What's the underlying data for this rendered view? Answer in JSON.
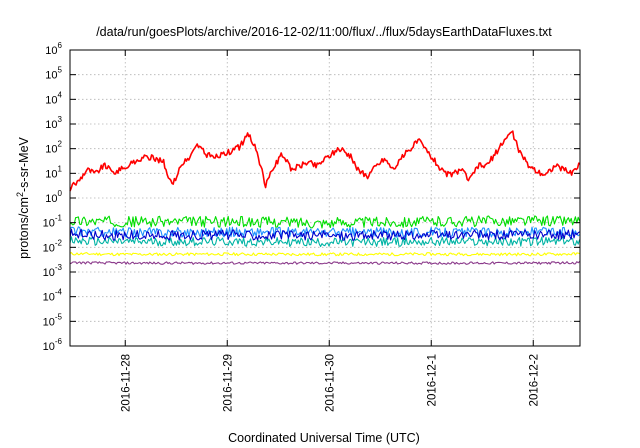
{
  "chart_data": {
    "type": "line",
    "title": "/data/run/goesPlots/archive/2016-12-02/11:00/flux/../flux/5daysEarthDataFluxes.txt",
    "xlabel": "Coordinated Universal Time (UTC)",
    "ylabel": {
      "before": "protons/cm",
      "sup": "2",
      "after": "-s-sr-MeV"
    },
    "y_scale": "log",
    "ylim": [
      1e-06,
      1000000.0
    ],
    "y_ticks": [
      {
        "value": 1e-06,
        "base": "10",
        "exp": "-6"
      },
      {
        "value": 1e-05,
        "base": "10",
        "exp": "-5"
      },
      {
        "value": 0.0001,
        "base": "10",
        "exp": "-4"
      },
      {
        "value": 0.001,
        "base": "10",
        "exp": "-3"
      },
      {
        "value": 0.01,
        "base": "10",
        "exp": "-2"
      },
      {
        "value": 0.1,
        "base": "10",
        "exp": "-1"
      },
      {
        "value": 1,
        "base": "10",
        "exp": "0"
      },
      {
        "value": 10,
        "base": "10",
        "exp": "1"
      },
      {
        "value": 100,
        "base": "10",
        "exp": "2"
      },
      {
        "value": 1000.0,
        "base": "10",
        "exp": "3"
      },
      {
        "value": 10000.0,
        "base": "10",
        "exp": "4"
      },
      {
        "value": 100000.0,
        "base": "10",
        "exp": "5"
      },
      {
        "value": 1000000.0,
        "base": "10",
        "exp": "6"
      }
    ],
    "xlim": [
      "2016-11-27 11:00",
      "2016-12-02 11:00"
    ],
    "x_ticks": [
      {
        "value": "2016-11-28 00:00",
        "label": "2016-11-28"
      },
      {
        "value": "2016-11-29 00:00",
        "label": "2016-11-29"
      },
      {
        "value": "2016-11-30 00:00",
        "label": "2016-11-30"
      },
      {
        "value": "2016-12-01 00:00",
        "label": "2016-12-1"
      },
      {
        "value": "2016-12-02 00:00",
        "label": "2016-12-2"
      }
    ],
    "grid": true,
    "legend": "none",
    "series": [
      {
        "color": "#ff0000",
        "x": [
          "2016-11-27 11:00",
          "2016-11-27 13:00",
          "2016-11-27 15:00",
          "2016-11-27 17:00",
          "2016-11-27 19:00",
          "2016-11-27 21:00",
          "2016-11-27 23:00",
          "2016-11-28 01:00",
          "2016-11-28 03:00",
          "2016-11-28 05:00",
          "2016-11-28 07:00",
          "2016-11-28 09:00",
          "2016-11-28 11:00",
          "2016-11-28 13:00",
          "2016-11-28 15:00",
          "2016-11-28 17:00",
          "2016-11-28 19:00",
          "2016-11-28 21:00",
          "2016-11-28 23:00",
          "2016-11-29 01:00",
          "2016-11-29 03:00",
          "2016-11-29 05:00",
          "2016-11-29 07:00",
          "2016-11-29 09:00",
          "2016-11-29 11:00",
          "2016-11-29 13:00",
          "2016-11-29 15:00",
          "2016-11-29 17:00",
          "2016-11-29 19:00",
          "2016-11-29 21:00",
          "2016-11-29 23:00",
          "2016-11-30 01:00",
          "2016-11-30 03:00",
          "2016-11-30 05:00",
          "2016-11-30 07:00",
          "2016-11-30 09:00",
          "2016-11-30 11:00",
          "2016-11-30 13:00",
          "2016-11-30 15:00",
          "2016-11-30 17:00",
          "2016-11-30 19:00",
          "2016-11-30 21:00",
          "2016-11-30 23:00",
          "2016-12-01 01:00",
          "2016-12-01 03:00",
          "2016-12-01 05:00",
          "2016-12-01 07:00",
          "2016-12-01 09:00",
          "2016-12-01 11:00",
          "2016-12-01 13:00",
          "2016-12-01 15:00",
          "2016-12-01 17:00",
          "2016-12-01 19:00",
          "2016-12-01 21:00",
          "2016-12-01 23:00",
          "2016-12-02 01:00",
          "2016-12-02 03:00",
          "2016-12-02 05:00",
          "2016-12-02 07:00",
          "2016-12-02 09:00",
          "2016-12-02 11:00"
        ],
        "y": [
          2.5,
          5,
          15,
          10,
          22,
          11,
          14,
          22,
          35,
          45,
          40,
          30,
          3,
          20,
          40,
          150,
          60,
          45,
          60,
          80,
          120,
          400,
          80,
          3,
          20,
          60,
          15,
          20,
          30,
          20,
          40,
          70,
          100,
          50,
          12,
          8,
          20,
          40,
          15,
          40,
          100,
          220,
          80,
          30,
          10,
          9,
          15,
          5,
          20,
          20,
          60,
          200,
          500,
          60,
          20,
          12,
          9,
          20,
          15,
          10,
          25
        ]
      },
      {
        "color": "#00dd00",
        "x": [
          "2016-11-27 11:00",
          "2016-11-28 00:00",
          "2016-11-29 00:00",
          "2016-11-30 00:00",
          "2016-12-01 00:00",
          "2016-12-02 00:00",
          "2016-12-02 11:00"
        ],
        "y": [
          0.12,
          0.11,
          0.11,
          0.1,
          0.11,
          0.12,
          0.12
        ]
      },
      {
        "color": "#0000cc",
        "x": [
          "2016-11-27 11:00",
          "2016-11-28 00:00",
          "2016-11-29 00:00",
          "2016-11-30 00:00",
          "2016-12-01 00:00",
          "2016-12-02 00:00",
          "2016-12-02 11:00"
        ],
        "y": [
          0.035,
          0.03,
          0.032,
          0.03,
          0.031,
          0.032,
          0.033
        ]
      },
      {
        "color": "#1e90ff",
        "x": [
          "2016-11-27 11:00",
          "2016-11-28 00:00",
          "2016-11-29 00:00",
          "2016-11-30 00:00",
          "2016-12-01 00:00",
          "2016-12-02 00:00",
          "2016-12-02 11:00"
        ],
        "y": [
          0.045,
          0.04,
          0.042,
          0.04,
          0.041,
          0.042,
          0.043
        ]
      },
      {
        "color": "#00b3a4",
        "x": [
          "2016-11-27 11:00",
          "2016-11-28 00:00",
          "2016-11-29 00:00",
          "2016-11-30 00:00",
          "2016-12-01 00:00",
          "2016-12-02 00:00",
          "2016-12-02 11:00"
        ],
        "y": [
          0.018,
          0.017,
          0.017,
          0.016,
          0.017,
          0.017,
          0.018
        ]
      },
      {
        "color": "#ffff00",
        "x": [
          "2016-11-27 11:00",
          "2016-11-28 00:00",
          "2016-11-29 00:00",
          "2016-11-30 00:00",
          "2016-12-01 00:00",
          "2016-12-02 00:00",
          "2016-12-02 11:00"
        ],
        "y": [
          0.0055,
          0.0052,
          0.0053,
          0.0052,
          0.0053,
          0.0052,
          0.0054
        ]
      },
      {
        "color": "#8b3a8b",
        "x": [
          "2016-11-27 11:00",
          "2016-11-28 00:00",
          "2016-11-29 00:00",
          "2016-11-30 00:00",
          "2016-12-01 00:00",
          "2016-12-02 00:00",
          "2016-12-02 11:00"
        ],
        "y": [
          0.0024,
          0.0023,
          0.0023,
          0.0023,
          0.0023,
          0.0023,
          0.0024
        ]
      }
    ]
  }
}
